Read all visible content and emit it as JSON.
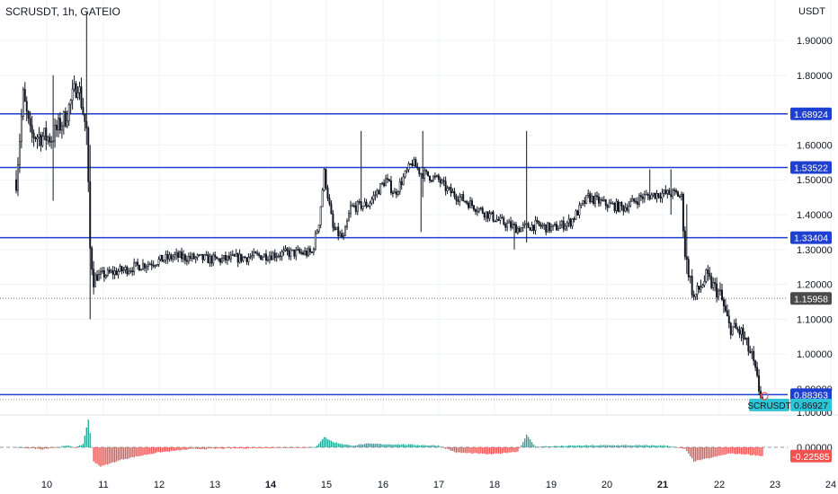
{
  "header": {
    "symbol": "SCRUSDT, 1h, GATEIO",
    "currency": "USDT"
  },
  "colors": {
    "up": "#ffffff",
    "down": "#131722",
    "wick": "#131722",
    "level": "#1e3fcf",
    "posHist": "#26a69a",
    "negHist": "#ef5350",
    "grid": "#f0f3fa",
    "currentTag": "#2ec4d6"
  },
  "chart_data": [
    {
      "type": "candlestick",
      "x_ticks": [
        {
          "label": "10",
          "bold": false
        },
        {
          "label": "11",
          "bold": false
        },
        {
          "label": "12",
          "bold": false
        },
        {
          "label": "13",
          "bold": false
        },
        {
          "label": "14",
          "bold": true
        },
        {
          "label": "15",
          "bold": false
        },
        {
          "label": "16",
          "bold": false
        },
        {
          "label": "17",
          "bold": false
        },
        {
          "label": "18",
          "bold": false
        },
        {
          "label": "19",
          "bold": false
        },
        {
          "label": "20",
          "bold": false
        },
        {
          "label": "21",
          "bold": true
        },
        {
          "label": "22",
          "bold": false
        },
        {
          "label": "23",
          "bold": false
        },
        {
          "label": "24",
          "bold": false
        }
      ],
      "y_ticks": [
        "1.90000",
        "1.80000",
        "1.60000",
        "1.50000",
        "1.40000",
        "1.30000",
        "1.20000",
        "1.10000",
        "1.00000",
        "0.90000"
      ],
      "ylim": [
        0.85,
        1.98
      ],
      "horizontal_levels": [
        "1.68924",
        "1.53522",
        "1.33404",
        "0.88363"
      ],
      "dotted_level": "1.15958",
      "current": {
        "label": "SCRUSDT",
        "value": "0.86927"
      },
      "waypoints": [
        [
          0,
          1.5
        ],
        [
          4,
          1.74
        ],
        [
          8,
          1.63
        ],
        [
          20,
          1.62
        ],
        [
          28,
          1.68
        ],
        [
          35,
          1.78
        ],
        [
          40,
          1.64
        ],
        [
          42,
          1.3
        ],
        [
          44,
          1.22
        ],
        [
          60,
          1.24
        ],
        [
          90,
          1.28
        ],
        [
          115,
          1.27
        ],
        [
          135,
          1.28
        ],
        [
          155,
          1.29
        ],
        [
          168,
          1.29
        ],
        [
          172,
          1.38
        ],
        [
          175,
          1.52
        ],
        [
          180,
          1.36
        ],
        [
          186,
          1.33
        ],
        [
          190,
          1.42
        ],
        [
          200,
          1.43
        ],
        [
          210,
          1.5
        ],
        [
          215,
          1.46
        ],
        [
          225,
          1.55
        ],
        [
          230,
          1.52
        ],
        [
          240,
          1.5
        ],
        [
          245,
          1.47
        ],
        [
          255,
          1.44
        ],
        [
          265,
          1.41
        ],
        [
          275,
          1.38
        ],
        [
          285,
          1.36
        ],
        [
          295,
          1.37
        ],
        [
          305,
          1.36
        ],
        [
          315,
          1.38
        ],
        [
          325,
          1.45
        ],
        [
          335,
          1.43
        ],
        [
          345,
          1.42
        ],
        [
          355,
          1.45
        ],
        [
          365,
          1.46
        ],
        [
          375,
          1.46
        ],
        [
          378,
          1.45
        ],
        [
          380,
          1.29
        ],
        [
          385,
          1.16
        ],
        [
          392,
          1.22
        ],
        [
          400,
          1.17
        ],
        [
          405,
          1.08
        ],
        [
          412,
          1.06
        ],
        [
          418,
          0.99
        ],
        [
          422,
          0.9
        ],
        [
          424,
          0.87
        ]
      ],
      "spikes": [
        {
          "i": 40,
          "high": 1.98,
          "low": 1.6
        },
        {
          "i": 42,
          "high": 1.6,
          "low": 1.1
        },
        {
          "i": 21,
          "high": 1.8,
          "low": 1.44
        },
        {
          "i": 196,
          "high": 1.64,
          "low": 1.5
        },
        {
          "i": 231,
          "high": 1.64,
          "low": 1.45
        },
        {
          "i": 230,
          "high": 1.48,
          "low": 1.35
        },
        {
          "i": 290,
          "high": 1.64,
          "low": 1.32
        },
        {
          "i": 283,
          "high": 1.38,
          "low": 1.3
        },
        {
          "i": 360,
          "high": 1.53,
          "low": 1.44
        },
        {
          "i": 372,
          "high": 1.53,
          "low": 1.4
        },
        {
          "i": 381,
          "high": 1.43,
          "low": 1.23
        }
      ],
      "oscillator": {
        "y_ticks": [
          "1.00000",
          "0.00000"
        ],
        "ylim": [
          -0.6,
          1.2
        ],
        "current": "-0.22585",
        "values": [
          [
            0,
            0
          ],
          [
            15,
            -0.05
          ],
          [
            30,
            0.05
          ],
          [
            34,
            -0.02
          ],
          [
            38,
            0.1
          ],
          [
            41,
            0.8
          ],
          [
            44,
            -0.4
          ],
          [
            48,
            -0.55
          ],
          [
            60,
            -0.35
          ],
          [
            80,
            -0.15
          ],
          [
            100,
            -0.05
          ],
          [
            140,
            -0.02
          ],
          [
            170,
            0.0
          ],
          [
            175,
            0.3
          ],
          [
            180,
            0.15
          ],
          [
            190,
            0.05
          ],
          [
            200,
            0.1
          ],
          [
            220,
            0.08
          ],
          [
            240,
            0.05
          ],
          [
            250,
            -0.15
          ],
          [
            270,
            -0.2
          ],
          [
            285,
            -0.12
          ],
          [
            290,
            0.35
          ],
          [
            295,
            0.02
          ],
          [
            320,
            0.05
          ],
          [
            340,
            0.06
          ],
          [
            370,
            0.05
          ],
          [
            380,
            -0.05
          ],
          [
            385,
            -0.4
          ],
          [
            395,
            -0.3
          ],
          [
            405,
            -0.18
          ],
          [
            415,
            -0.2
          ],
          [
            424,
            -0.25
          ]
        ]
      }
    }
  ]
}
